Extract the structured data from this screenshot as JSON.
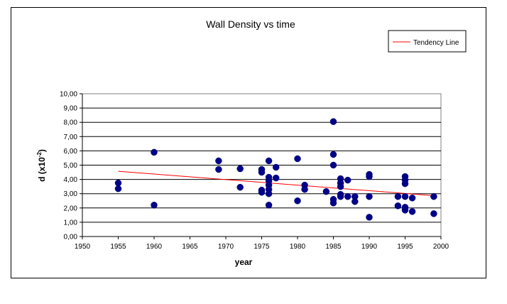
{
  "chart_data": {
    "type": "scatter",
    "title": "Wall Density  vs time",
    "xlabel": "year",
    "ylabel": "d (x10-2)",
    "ylabel_base": "d (x10",
    "ylabel_exp": "-2",
    "ylabel_tail": ")",
    "xlim": [
      1950,
      2000
    ],
    "ylim": [
      0,
      10
    ],
    "x_ticks": [
      "1950",
      "1955",
      "1960",
      "1965",
      "1970",
      "1975",
      "1980",
      "1985",
      "1990",
      "1995",
      "2000"
    ],
    "y_ticks": [
      "0,00",
      "1,00",
      "2,00",
      "3,00",
      "4,00",
      "5,00",
      "6,00",
      "7,00",
      "8,00",
      "9,00",
      "10,00"
    ],
    "grid": "horizontal",
    "legend_position": "top-right",
    "colors": {
      "points": "#00008b",
      "trend": "#ff0000",
      "plot_bg": "#ffffff"
    },
    "trend_line": {
      "name": "Tendency Line",
      "x": [
        1955,
        1999
      ],
      "y": [
        4.57,
        2.86
      ]
    },
    "points": [
      {
        "x": 1955,
        "y": 3.75
      },
      {
        "x": 1955,
        "y": 3.35
      },
      {
        "x": 1960,
        "y": 5.9
      },
      {
        "x": 1960,
        "y": 2.2
      },
      {
        "x": 1969,
        "y": 5.3
      },
      {
        "x": 1969,
        "y": 4.7
      },
      {
        "x": 1972,
        "y": 4.75
      },
      {
        "x": 1972,
        "y": 3.45
      },
      {
        "x": 1975,
        "y": 4.7
      },
      {
        "x": 1975,
        "y": 4.5
      },
      {
        "x": 1975,
        "y": 3.25
      },
      {
        "x": 1975,
        "y": 3.1
      },
      {
        "x": 1976,
        "y": 5.3
      },
      {
        "x": 1976,
        "y": 4.15
      },
      {
        "x": 1976,
        "y": 3.9
      },
      {
        "x": 1976,
        "y": 3.6
      },
      {
        "x": 1976,
        "y": 3.3
      },
      {
        "x": 1976,
        "y": 3.0
      },
      {
        "x": 1976,
        "y": 2.2
      },
      {
        "x": 1977,
        "y": 4.85
      },
      {
        "x": 1977,
        "y": 4.1
      },
      {
        "x": 1980,
        "y": 5.45
      },
      {
        "x": 1980,
        "y": 2.5
      },
      {
        "x": 1981,
        "y": 3.6
      },
      {
        "x": 1981,
        "y": 3.3
      },
      {
        "x": 1984,
        "y": 3.15
      },
      {
        "x": 1985,
        "y": 8.05
      },
      {
        "x": 1985,
        "y": 5.75
      },
      {
        "x": 1985,
        "y": 5.0
      },
      {
        "x": 1985,
        "y": 2.6
      },
      {
        "x": 1985,
        "y": 2.35
      },
      {
        "x": 1986,
        "y": 4.05
      },
      {
        "x": 1986,
        "y": 3.75
      },
      {
        "x": 1986,
        "y": 3.5
      },
      {
        "x": 1986,
        "y": 2.95
      },
      {
        "x": 1986,
        "y": 2.8
      },
      {
        "x": 1987,
        "y": 3.95
      },
      {
        "x": 1987,
        "y": 2.8
      },
      {
        "x": 1988,
        "y": 2.8
      },
      {
        "x": 1988,
        "y": 2.45
      },
      {
        "x": 1990,
        "y": 4.35
      },
      {
        "x": 1990,
        "y": 4.2
      },
      {
        "x": 1990,
        "y": 2.8
      },
      {
        "x": 1990,
        "y": 1.35
      },
      {
        "x": 1994,
        "y": 2.8
      },
      {
        "x": 1994,
        "y": 2.15
      },
      {
        "x": 1995,
        "y": 4.2
      },
      {
        "x": 1995,
        "y": 3.95
      },
      {
        "x": 1995,
        "y": 3.7
      },
      {
        "x": 1995,
        "y": 2.8
      },
      {
        "x": 1995,
        "y": 2.05
      },
      {
        "x": 1995,
        "y": 1.85
      },
      {
        "x": 1996,
        "y": 2.7
      },
      {
        "x": 1996,
        "y": 1.75
      },
      {
        "x": 1999,
        "y": 2.8
      },
      {
        "x": 1999,
        "y": 1.6
      }
    ]
  }
}
